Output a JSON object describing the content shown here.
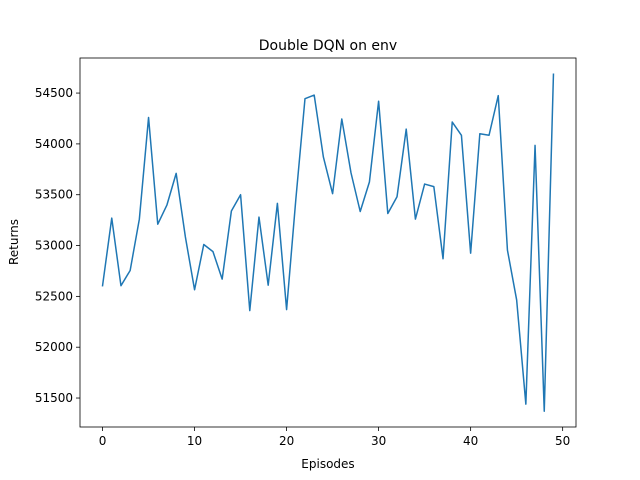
{
  "chart_data": {
    "type": "line",
    "title": "Double DQN on env",
    "xlabel": "Episodes",
    "ylabel": "Returns",
    "xlim": [
      -2.45,
      51.45
    ],
    "ylim": [
      51215,
      54845
    ],
    "x_ticks": [
      0,
      10,
      20,
      30,
      40,
      50
    ],
    "y_ticks": [
      51500,
      52000,
      52500,
      53000,
      53500,
      54000,
      54500
    ],
    "grid": false,
    "series": [
      {
        "color": "#1f77b4",
        "x": [
          0,
          1,
          2,
          3,
          4,
          5,
          6,
          7,
          8,
          9,
          10,
          11,
          12,
          13,
          14,
          15,
          16,
          17,
          18,
          19,
          20,
          21,
          22,
          23,
          24,
          25,
          26,
          27,
          28,
          29,
          30,
          31,
          32,
          33,
          34,
          35,
          36,
          37,
          38,
          39,
          40,
          41,
          42,
          43,
          44,
          45,
          46,
          47,
          48,
          49
        ],
        "y": [
          52605,
          53270,
          52605,
          52755,
          53260,
          54260,
          53210,
          53400,
          53710,
          53085,
          52565,
          53010,
          52940,
          52670,
          53340,
          53500,
          52360,
          53280,
          52610,
          53415,
          52370,
          53450,
          54445,
          54480,
          53870,
          53510,
          54245,
          53715,
          53335,
          53625,
          54420,
          53315,
          53480,
          54145,
          53260,
          53605,
          53580,
          52870,
          54215,
          54085,
          52925,
          54100,
          54085,
          54475,
          52955,
          52465,
          51440,
          53985,
          51370,
          54685
        ]
      }
    ]
  }
}
